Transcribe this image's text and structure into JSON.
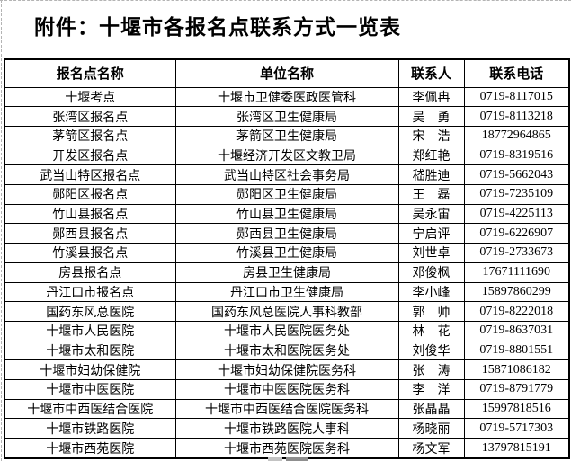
{
  "title": "附件：十堰市各报名点联系方式一览表",
  "table": {
    "headers": [
      "报名点名称",
      "单位名称",
      "联系人",
      "联系电话"
    ],
    "rows": [
      [
        "十堰考点",
        "十堰市卫健委医政医管科",
        "李佩冉",
        "0719-8117015"
      ],
      [
        "张湾区报名点",
        "张湾区卫生健康局",
        "吴　勇",
        "0719-8113218"
      ],
      [
        "茅箭区报名点",
        "茅箭区卫生健康局",
        "宋　浩",
        "18772964865"
      ],
      [
        "开发区报名点",
        "十堰经济开发区文教卫局",
        "郑红艳",
        "0719-8319516"
      ],
      [
        "武当山特区报名点",
        "武当山特区社会事务局",
        "嵇胜迪",
        "0719-5662043"
      ],
      [
        "郧阳区报名点",
        "郧阳区卫生健康局",
        "王　磊",
        "0719-7235109"
      ],
      [
        "竹山县报名点",
        "竹山县卫生健康局",
        "吴永宙",
        "0719-4225113"
      ],
      [
        "郧西县报名点",
        "郧西县卫生健康局",
        "宁启评",
        "0719-6226907"
      ],
      [
        "竹溪县报名点",
        "竹溪县卫生健康局",
        "刘世卓",
        "0719-2733673"
      ],
      [
        "房县报名点",
        "房县卫生健康局",
        "邓俊枫",
        "17671111690"
      ],
      [
        "丹江口市报名点",
        "丹江口市卫生健康局",
        "李小峰",
        "15897860299"
      ],
      [
        "国药东风总医院",
        "国药东风总医院人事科教部",
        "郭　帅",
        "0719-8222018"
      ],
      [
        "十堰市人民医院",
        "十堰市人民医院医务处",
        "林　花",
        "0719-8637031"
      ],
      [
        "十堰市太和医院",
        "十堰市太和医院医务处",
        "刘俊华",
        "0719-8801551"
      ],
      [
        "十堰市妇幼保健院",
        "十堰市妇幼保健院医务科",
        "张　涛",
        "15871086182"
      ],
      [
        "十堰市中医医院",
        "十堰市中医医院医务科",
        "李　洋",
        "0719-8791779"
      ],
      [
        "十堰市中西医结合医院",
        "十堰市中西医结合医院医务科",
        "张晶晶",
        "15997818516"
      ],
      [
        "十堰市铁路医院",
        "十堰市铁路医院人事科",
        "杨晓丽",
        "0719-5717303"
      ],
      [
        "十堰市西苑医院",
        "十堰市西苑医院医务科",
        "杨文军",
        "13797815191"
      ]
    ]
  },
  "colors": {
    "text": "#000000",
    "border": "#000000",
    "background": "#ffffff",
    "page_break_line": "#b4b4b4"
  }
}
